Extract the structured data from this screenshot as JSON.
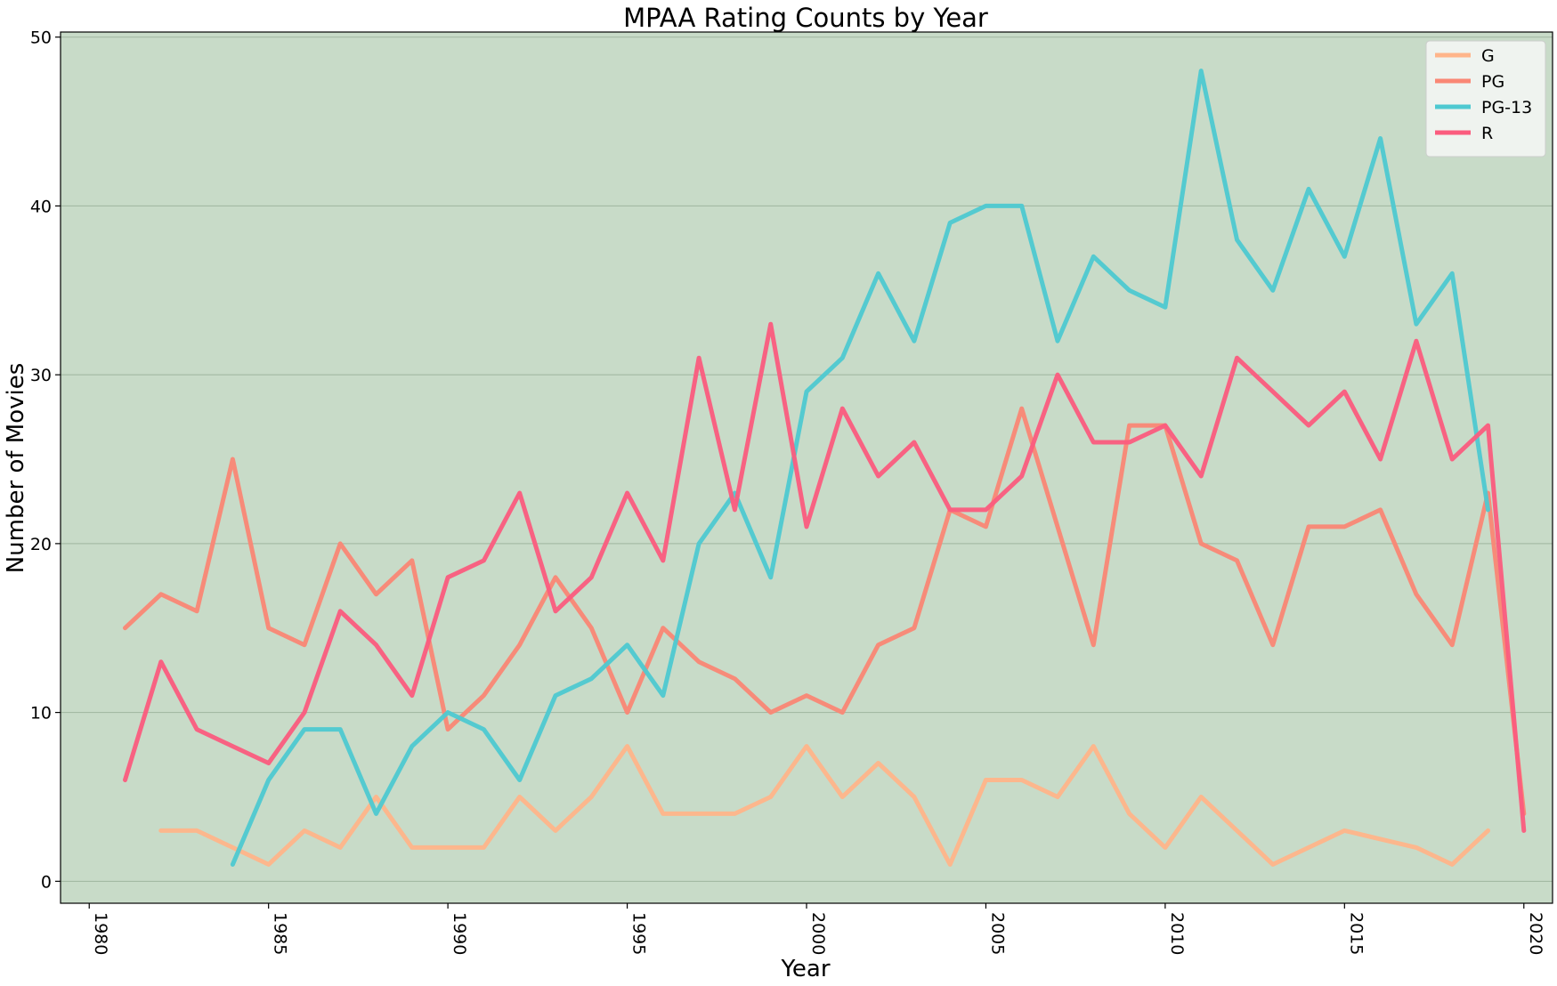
{
  "chart_data": {
    "type": "line",
    "title": "MPAA Rating Counts by Year",
    "xlabel": "Year",
    "ylabel": "Number of Movies",
    "xlim": [
      1979.2,
      2020.8
    ],
    "ylim": [
      -1.3,
      50.3
    ],
    "xticks": [
      1980,
      1985,
      1990,
      1995,
      2000,
      2005,
      2010,
      2015,
      2020
    ],
    "yticks": [
      0,
      10,
      20,
      30,
      40,
      50
    ],
    "grid": "horizontal",
    "legend_position": "top-right",
    "background_color": "#c8dbc8",
    "series": [
      {
        "name": "G",
        "color": "#ffb58a",
        "x": [
          1982,
          1983,
          1984,
          1985,
          1986,
          1987,
          1988,
          1989,
          1990,
          1991,
          1992,
          1993,
          1994,
          1995,
          1996,
          1997,
          1998,
          1999,
          2000,
          2001,
          2002,
          2003,
          2004,
          2005,
          2006,
          2007,
          2008,
          2009,
          2010,
          2011,
          2012,
          2013,
          2014,
          2015,
          2016,
          2017,
          2018,
          2019
        ],
        "values": [
          3,
          3,
          2,
          1,
          3,
          2,
          5,
          2,
          2,
          2,
          5,
          3,
          5,
          8,
          4,
          4,
          4,
          5,
          8,
          5,
          7,
          5,
          1,
          6,
          6,
          5,
          8,
          4,
          2,
          5,
          3,
          1,
          2,
          3,
          2.5,
          2,
          1,
          3
        ]
      },
      {
        "name": "PG",
        "color": "#fa8775",
        "x": [
          1981,
          1982,
          1983,
          1984,
          1985,
          1986,
          1987,
          1988,
          1989,
          1990,
          1991,
          1992,
          1993,
          1994,
          1995,
          1996,
          1997,
          1998,
          1999,
          2000,
          2001,
          2002,
          2003,
          2004,
          2005,
          2006,
          2007,
          2008,
          2009,
          2010,
          2011,
          2012,
          2013,
          2014,
          2015,
          2016,
          2017,
          2018,
          2019,
          2020
        ],
        "values": [
          15,
          17,
          16,
          25,
          15,
          14,
          20,
          17,
          19,
          9,
          11,
          14,
          18,
          15,
          10,
          15,
          13,
          12,
          10,
          11,
          10,
          14,
          15,
          22,
          21,
          28,
          21,
          14,
          27,
          27,
          20,
          19,
          14,
          21,
          21,
          22,
          17,
          14,
          23,
          4
        ]
      },
      {
        "name": "PG-13",
        "color": "#4ec9d1",
        "x": [
          1984,
          1985,
          1986,
          1987,
          1988,
          1989,
          1990,
          1991,
          1992,
          1993,
          1994,
          1995,
          1996,
          1997,
          1998,
          1999,
          2000,
          2001,
          2002,
          2003,
          2004,
          2005,
          2006,
          2007,
          2008,
          2009,
          2010,
          2011,
          2012,
          2013,
          2014,
          2015,
          2016,
          2017,
          2018,
          2019
        ],
        "values": [
          1,
          6,
          9,
          9,
          4,
          8,
          10,
          9,
          6,
          11,
          12,
          14,
          11,
          20,
          23,
          18,
          29,
          31,
          36,
          32,
          39,
          40,
          40,
          32,
          37,
          35,
          34,
          48,
          38,
          35,
          41,
          37,
          44,
          33,
          36,
          22
        ]
      },
      {
        "name": "R",
        "color": "#fb5c7e",
        "x": [
          1981,
          1982,
          1983,
          1984,
          1985,
          1986,
          1987,
          1988,
          1989,
          1990,
          1991,
          1992,
          1993,
          1994,
          1995,
          1996,
          1997,
          1998,
          1999,
          2000,
          2001,
          2002,
          2003,
          2004,
          2005,
          2006,
          2007,
          2008,
          2009,
          2010,
          2011,
          2012,
          2013,
          2014,
          2015,
          2016,
          2017,
          2018,
          2019,
          2020
        ],
        "values": [
          6,
          13,
          9,
          8,
          7,
          10,
          16,
          14,
          11,
          18,
          19,
          23,
          16,
          18,
          23,
          19,
          31,
          22,
          33,
          21,
          28,
          24,
          26,
          22,
          22,
          24,
          30,
          26,
          26,
          27,
          24,
          31,
          29,
          27,
          29,
          25,
          32,
          25,
          27,
          3
        ]
      }
    ]
  }
}
